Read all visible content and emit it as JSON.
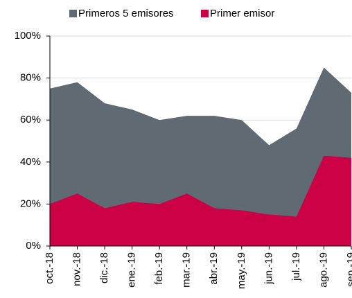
{
  "chart_data": {
    "type": "area",
    "categories": [
      "oct.-18",
      "nov.-18",
      "dic.-18",
      "ene.-19",
      "feb.-19",
      "mar.-19",
      "abr.-19",
      "may.-19",
      "jun.-19",
      "jul.-19",
      "ago.-19",
      "sep.-19"
    ],
    "series": [
      {
        "name": "Primeros 5 emisores",
        "color": "#5f6a72",
        "values": [
          75,
          78,
          68,
          65,
          60,
          62,
          62,
          60,
          48,
          56,
          85,
          73
        ]
      },
      {
        "name": "Primer emisor",
        "color": "#cc0044",
        "values": [
          20,
          25,
          18,
          21,
          20,
          25,
          18,
          17,
          15,
          14,
          43,
          42
        ]
      }
    ],
    "ylim": [
      0,
      100
    ],
    "yticks": [
      {
        "value": 0,
        "label": "0%"
      },
      {
        "value": 20,
        "label": "20%"
      },
      {
        "value": 40,
        "label": "40%"
      },
      {
        "value": 60,
        "label": "60%"
      },
      {
        "value": 80,
        "label": "80%"
      },
      {
        "value": 100,
        "label": "100%"
      }
    ],
    "grid": true,
    "legend": "top"
  }
}
